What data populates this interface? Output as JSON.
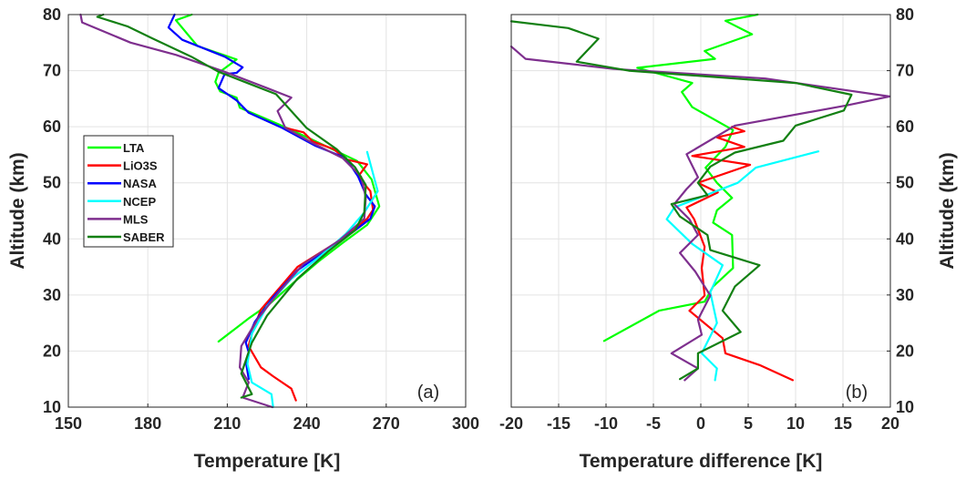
{
  "chart_data": [
    {
      "type": "line",
      "panel_label": "(a)",
      "xlabel": "Temperature [K]",
      "ylabel": "Altitude (km)",
      "xlim": [
        150,
        300
      ],
      "ylim": [
        10,
        80
      ],
      "xticks": [
        150,
        180,
        210,
        240,
        270,
        300
      ],
      "yticks": [
        10,
        20,
        30,
        40,
        50,
        60,
        70,
        80
      ],
      "grid": true,
      "legend_placement": "middle-left",
      "series": [
        {
          "name": "LTA",
          "color": "#00ff00",
          "points": [
            [
              196.6,
              80
            ],
            [
              190.6,
              79
            ],
            [
              198.7,
              74.4
            ],
            [
              213.5,
              72
            ],
            [
              206.7,
              69.6
            ],
            [
              205.5,
              68
            ],
            [
              207.3,
              66.3
            ],
            [
              213.5,
              65.2
            ],
            [
              214.7,
              63.4
            ],
            [
              229.6,
              60.4
            ],
            [
              242,
              57.7
            ],
            [
              259,
              53.9
            ],
            [
              264.5,
              50.6
            ],
            [
              267.4,
              45.8
            ],
            [
              262.8,
              42.5
            ],
            [
              253.6,
              39.3
            ],
            [
              244.5,
              36
            ],
            [
              235.3,
              32.3
            ],
            [
              226.2,
              28.5
            ],
            [
              218,
              25.8
            ],
            [
              206.7,
              21.7
            ]
          ]
        },
        {
          "name": "LiO3S",
          "color": "#ff0000",
          "points": [
            [
              232,
              59.8
            ],
            [
              238.8,
              59
            ],
            [
              242.2,
              57.4
            ],
            [
              250.2,
              56
            ],
            [
              254.8,
              54.2
            ],
            [
              262.8,
              53.3
            ],
            [
              259.4,
              51.1
            ],
            [
              264,
              48.5
            ],
            [
              265,
              45.2
            ],
            [
              262.8,
              43.6
            ],
            [
              254.8,
              40.4
            ],
            [
              245.6,
              37.7
            ],
            [
              236.5,
              35
            ],
            [
              229.6,
              31.2
            ],
            [
              222.7,
              27.4
            ],
            [
              219.3,
              23.1
            ],
            [
              218,
              20.9
            ],
            [
              222.7,
              17.1
            ],
            [
              227.3,
              15.5
            ],
            [
              234.2,
              13.3
            ],
            [
              235.9,
              11.2
            ]
          ]
        },
        {
          "name": "NASA",
          "color": "#0000ff",
          "points": [
            [
              190.1,
              80
            ],
            [
              187.8,
              77.7
            ],
            [
              193,
              75.5
            ],
            [
              209,
              72.5
            ],
            [
              215.8,
              70.6
            ],
            [
              213.5,
              69.6
            ],
            [
              209,
              69.4
            ],
            [
              206.7,
              66.9
            ],
            [
              213.5,
              64.7
            ],
            [
              218.1,
              62.5
            ],
            [
              230.7,
              59.8
            ],
            [
              243.3,
              56.6
            ],
            [
              254.8,
              54.4
            ],
            [
              259.4,
              51.1
            ],
            [
              262.3,
              47.9
            ],
            [
              265.7,
              45.8
            ],
            [
              264,
              43.6
            ],
            [
              258.2,
              41.5
            ],
            [
              247.9,
              38.2
            ],
            [
              236.5,
              34.4
            ],
            [
              227.3,
              29.6
            ],
            [
              220.4,
              25.2
            ],
            [
              217,
              21.5
            ],
            [
              218.1,
              19.8
            ],
            [
              217,
              18.2
            ],
            [
              218.1,
              15
            ]
          ]
        },
        {
          "name": "NCEP",
          "color": "#00ffff",
          "points": [
            [
              262.8,
              55.5
            ],
            [
              266.8,
              48.5
            ],
            [
              261.7,
              44.7
            ],
            [
              254.8,
              40.9
            ],
            [
              245.6,
              37.1
            ],
            [
              234.2,
              32.9
            ],
            [
              225,
              28
            ],
            [
              219.3,
              23.1
            ],
            [
              217.6,
              17.7
            ],
            [
              219.3,
              14.4
            ],
            [
              226.7,
              12.3
            ],
            [
              227.3,
              10
            ]
          ]
        },
        {
          "name": "MLS",
          "color": "#7e2f8e",
          "points": [
            [
              154.6,
              80
            ],
            [
              155.2,
              78.6
            ],
            [
              173.5,
              75
            ],
            [
              190.7,
              72.8
            ],
            [
              209,
              69.8
            ],
            [
              225,
              66.9
            ],
            [
              234.2,
              65.2
            ],
            [
              229,
              62.8
            ],
            [
              231.9,
              59.8
            ],
            [
              242.2,
              57.1
            ],
            [
              253.6,
              54.4
            ],
            [
              260.5,
              51.1
            ],
            [
              262.3,
              47.4
            ],
            [
              261.7,
              43.6
            ],
            [
              252.5,
              39.8
            ],
            [
              238.7,
              35.5
            ],
            [
              229.6,
              30.6
            ],
            [
              221.6,
              25.8
            ],
            [
              215.3,
              20.9
            ],
            [
              214.7,
              17.1
            ],
            [
              218.1,
              14.4
            ],
            [
              215.8,
              11.7
            ],
            [
              227,
              10
            ]
          ]
        },
        {
          "name": "SABER",
          "color": "#138013",
          "points": [
            [
              163.2,
              80
            ],
            [
              160.9,
              79.6
            ],
            [
              172.3,
              77.9
            ],
            [
              181.5,
              75.8
            ],
            [
              196.4,
              72.5
            ],
            [
              206.7,
              69.8
            ],
            [
              218.1,
              67.7
            ],
            [
              228.4,
              65.8
            ],
            [
              239.9,
              59.8
            ],
            [
              251.3,
              56
            ],
            [
              258.2,
              52.8
            ],
            [
              262.3,
              49.6
            ],
            [
              261.7,
              44.7
            ],
            [
              258.2,
              41.5
            ],
            [
              247.9,
              37.7
            ],
            [
              236.5,
              32.9
            ],
            [
              225,
              26.3
            ],
            [
              219.3,
              21.5
            ],
            [
              215.3,
              16
            ],
            [
              219.3,
              12.3
            ],
            [
              215.3,
              11.7
            ]
          ]
        }
      ]
    },
    {
      "type": "line",
      "panel_label": "(b)",
      "xlabel": "Temperature difference [K]",
      "ylabel": "Altitude (km)",
      "xlim": [
        -20,
        20
      ],
      "ylim": [
        10,
        80
      ],
      "xticks": [
        -20,
        -15,
        -10,
        -5,
        0,
        5,
        10,
        15,
        20
      ],
      "yticks": [
        10,
        20,
        30,
        40,
        50,
        60,
        70,
        80
      ],
      "grid": true,
      "series": [
        {
          "name": "LTA",
          "color": "#00ff00",
          "points": [
            [
              6,
              80
            ],
            [
              2.6,
              78.9
            ],
            [
              5.4,
              76.5
            ],
            [
              0.4,
              73.5
            ],
            [
              1.5,
              72.1
            ],
            [
              -6.7,
              70.5
            ],
            [
              -0.9,
              67.8
            ],
            [
              -2,
              66.2
            ],
            [
              -0.9,
              63.5
            ],
            [
              3.4,
              59.4
            ],
            [
              2.6,
              56.4
            ],
            [
              0.5,
              52.7
            ],
            [
              1.7,
              50
            ],
            [
              3.3,
              47.3
            ],
            [
              1.7,
              45.1
            ],
            [
              1.3,
              42.9
            ],
            [
              3.3,
              40.7
            ],
            [
              3.4,
              34.8
            ],
            [
              1.3,
              31.5
            ],
            [
              0.4,
              28.8
            ],
            [
              -4.4,
              27.2
            ],
            [
              -10.2,
              21.8
            ]
          ]
        },
        {
          "name": "LiO3S",
          "color": "#ff0000",
          "points": [
            [
              3.3,
              60
            ],
            [
              4.6,
              59.2
            ],
            [
              1.7,
              58.1
            ],
            [
              4.6,
              56.4
            ],
            [
              -0.9,
              54.8
            ],
            [
              5.2,
              53.2
            ],
            [
              -0.3,
              50
            ],
            [
              1.8,
              48.3
            ],
            [
              -1.5,
              45.6
            ],
            [
              -0.7,
              43.5
            ],
            [
              0.4,
              38.6
            ],
            [
              0.1,
              34.8
            ],
            [
              0.4,
              29.9
            ],
            [
              -1.2,
              27.2
            ],
            [
              2.3,
              22.3
            ],
            [
              2.6,
              19.6
            ],
            [
              6.2,
              17.5
            ],
            [
              9.7,
              14.8
            ]
          ]
        },
        {
          "name": "NCEP",
          "color": "#00ffff",
          "points": [
            [
              12.4,
              55.6
            ],
            [
              5.8,
              52.7
            ],
            [
              3.9,
              50
            ],
            [
              -2.8,
              45.6
            ],
            [
              -3.6,
              43.5
            ],
            [
              -0.9,
              39.1
            ],
            [
              2.3,
              35.3
            ],
            [
              1,
              30.5
            ],
            [
              1.7,
              25
            ],
            [
              0.1,
              19.6
            ],
            [
              1.7,
              16.9
            ],
            [
              1.5,
              14.8
            ]
          ]
        },
        {
          "name": "MLS",
          "color": "#7e2f8e",
          "points": [
            [
              -20,
              74.3
            ],
            [
              -18.5,
              72.1
            ],
            [
              -9.2,
              70.3
            ],
            [
              6.8,
              68.6
            ],
            [
              19.9,
              65.4
            ],
            [
              15.4,
              63.8
            ],
            [
              3.6,
              60.2
            ],
            [
              -1.5,
              55.1
            ],
            [
              -0.3,
              51
            ],
            [
              -1.5,
              48.9
            ],
            [
              -2.8,
              46.2
            ],
            [
              -1.2,
              43.5
            ],
            [
              -0.3,
              40.7
            ],
            [
              -2.2,
              37.5
            ],
            [
              -0.6,
              34.2
            ],
            [
              1,
              29.9
            ],
            [
              -0.3,
              25.6
            ],
            [
              0.1,
              22.9
            ],
            [
              -3.1,
              19.6
            ],
            [
              -0.3,
              16.9
            ],
            [
              -1.7,
              14.8
            ]
          ]
        },
        {
          "name": "SABER",
          "color": "#138013",
          "points": [
            [
              -20,
              78.8
            ],
            [
              -14,
              77.6
            ],
            [
              -10.8,
              75.7
            ],
            [
              -13.1,
              71.6
            ],
            [
              -7.6,
              70
            ],
            [
              10,
              67.8
            ],
            [
              15.9,
              65.7
            ],
            [
              15.1,
              62.9
            ],
            [
              10,
              60.2
            ],
            [
              8.7,
              57.5
            ],
            [
              3.6,
              55.4
            ],
            [
              1,
              52.9
            ],
            [
              -0.3,
              50
            ],
            [
              0.7,
              47.8
            ],
            [
              -3.1,
              46.2
            ],
            [
              -2.2,
              44
            ],
            [
              0.7,
              40.7
            ],
            [
              1,
              38
            ],
            [
              6.2,
              35.3
            ],
            [
              3.6,
              31.5
            ],
            [
              2.3,
              27.2
            ],
            [
              4.2,
              23.4
            ],
            [
              -0.3,
              19.6
            ],
            [
              -0.3,
              16.9
            ],
            [
              -2.2,
              15
            ]
          ]
        }
      ]
    }
  ]
}
